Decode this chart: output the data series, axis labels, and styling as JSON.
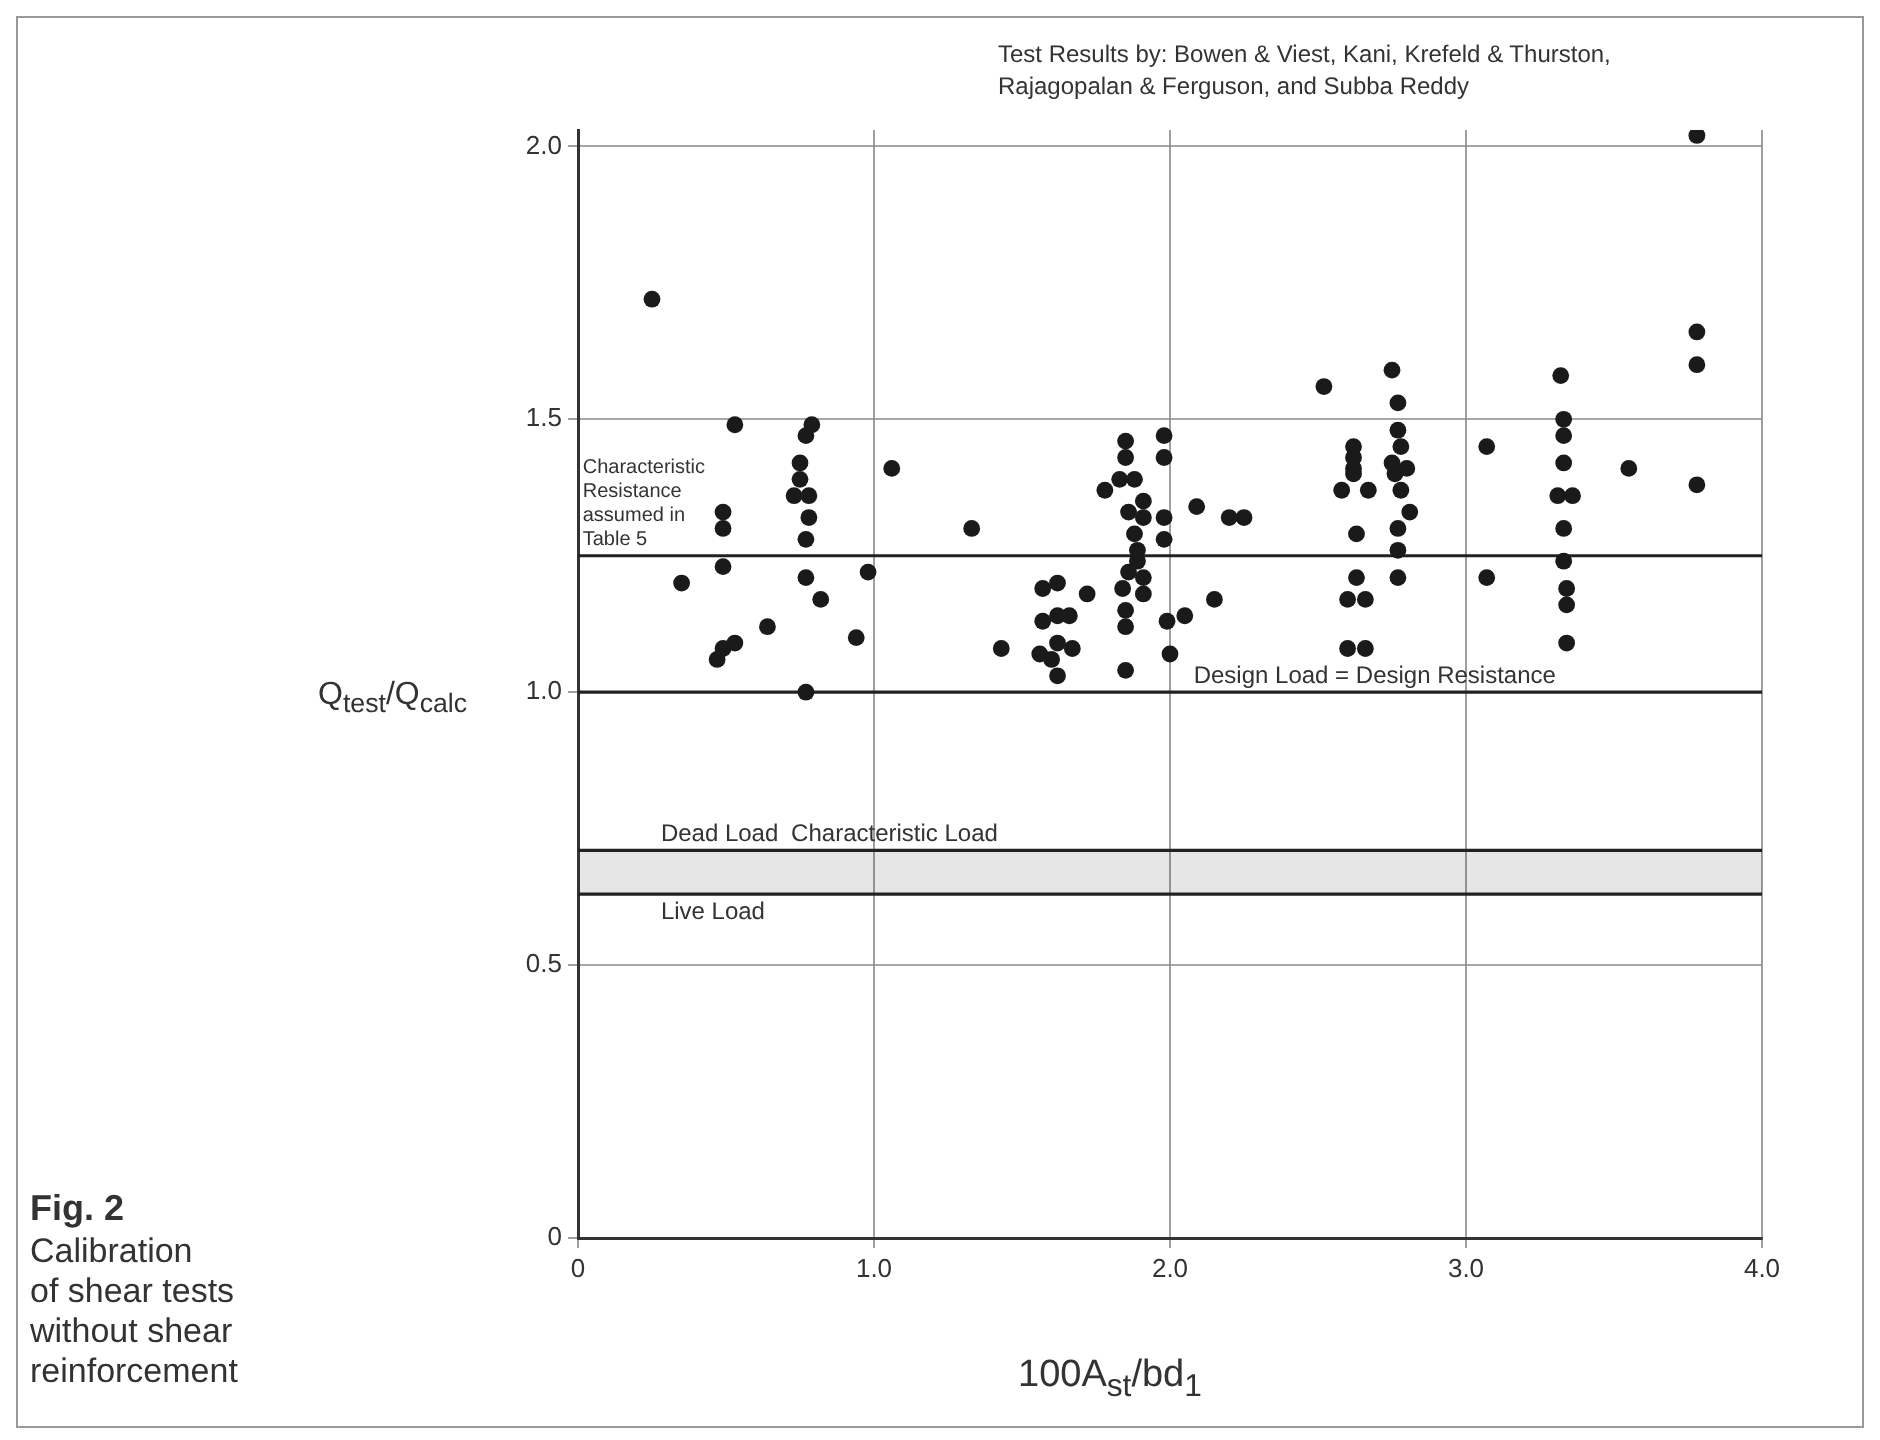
{
  "chart_data": {
    "type": "scatter",
    "xlabel": "100A$_{st}$/bd$_{1}$",
    "ylabel": "Q$_{test}$/Q$_{calc}$",
    "annotations": [
      "Test Results by: Bowen & Viest, Kani, Krefeld & Thurston,\nRajagopalan & Ferguson, and Subba Reddy",
      "Fig. 2",
      "Calibration\nof shear tests\nwithout shear\nreinforcement"
    ],
    "xlim": [
      0,
      4
    ],
    "ylim": [
      0,
      2.03
    ],
    "xticks": [
      0,
      {
        "value": 1,
        "label": "1.0"
      },
      {
        "value": 2,
        "label": "2.0"
      },
      {
        "value": 3,
        "label": "3.0"
      },
      {
        "value": 4,
        "label": "4.0"
      }
    ],
    "yticks": [
      0,
      {
        "value": 0.5,
        "label": "0.5"
      },
      {
        "value": 1,
        "label": "1.0"
      },
      {
        "value": 1.5,
        "label": "1.5"
      },
      {
        "value": 2,
        "label": "2.0"
      }
    ],
    "grid": true,
    "legend": false,
    "marker": "circle",
    "ref_lines": [
      {
        "axis": "y",
        "value": 1.25,
        "label": "Characteristic Resistance assumed in Table 5",
        "color": "#222222"
      },
      {
        "axis": "y",
        "value": 1.0,
        "label": "Design Load = Design Resistance",
        "color": "#222222"
      },
      {
        "axis": "y",
        "value": 0.71,
        "label": "Dead Load",
        "color": "#222222"
      },
      {
        "axis": "y",
        "value": 0.63,
        "label": "Live Load",
        "color": "#222222"
      }
    ],
    "bands": [
      {
        "axis": "y",
        "from": 0.63,
        "to": 0.71,
        "label": "Characteristic Load",
        "color": "#444444"
      }
    ],
    "series": [
      {
        "color": "#1a1a1a",
        "x": [
          0.25,
          0.53,
          0.79,
          0.77,
          0.75,
          0.75,
          0.73,
          0.78,
          0.78,
          0.77,
          0.77,
          0.82,
          0.94,
          0.77,
          1.06,
          1.33,
          0.98,
          0.49,
          0.49,
          0.49,
          0.35,
          0.64,
          0.53,
          0.49,
          0.47,
          1.43,
          1.57,
          1.62,
          1.72,
          1.57,
          1.62,
          1.66,
          1.62,
          1.56,
          1.6,
          1.67,
          1.62,
          1.78,
          1.85,
          1.85,
          1.83,
          1.88,
          1.91,
          1.86,
          1.91,
          1.88,
          1.89,
          1.89,
          1.86,
          1.91,
          1.84,
          1.91,
          1.85,
          1.85,
          1.85,
          1.98,
          1.98,
          1.98,
          1.98,
          1.99,
          2.05,
          2.0,
          2.09,
          2.15,
          2.2,
          2.25,
          2.52,
          2.62,
          2.62,
          2.62,
          2.62,
          2.58,
          2.67,
          2.63,
          2.63,
          2.6,
          2.66,
          2.6,
          2.66,
          2.75,
          2.77,
          2.77,
          2.78,
          2.75,
          2.8,
          2.76,
          2.78,
          2.81,
          2.77,
          2.77,
          2.77,
          3.07,
          3.07,
          3.32,
          3.33,
          3.33,
          3.33,
          3.31,
          3.36,
          3.33,
          3.33,
          3.34,
          3.34,
          3.34,
          3.55,
          3.78,
          3.78,
          3.78,
          3.78
        ],
        "values": [
          1.72,
          1.49,
          1.49,
          1.47,
          1.42,
          1.39,
          1.36,
          1.36,
          1.32,
          1.28,
          1.21,
          1.17,
          1.1,
          1.0,
          1.41,
          1.3,
          1.22,
          1.33,
          1.3,
          1.23,
          1.2,
          1.12,
          1.09,
          1.08,
          1.06,
          1.08,
          1.19,
          1.2,
          1.18,
          1.13,
          1.14,
          1.14,
          1.09,
          1.07,
          1.06,
          1.08,
          1.03,
          1.37,
          1.46,
          1.43,
          1.39,
          1.39,
          1.35,
          1.33,
          1.32,
          1.29,
          1.26,
          1.24,
          1.22,
          1.21,
          1.19,
          1.18,
          1.15,
          1.12,
          1.04,
          1.47,
          1.43,
          1.32,
          1.28,
          1.13,
          1.14,
          1.07,
          1.34,
          1.17,
          1.32,
          1.32,
          1.56,
          1.45,
          1.43,
          1.41,
          1.4,
          1.37,
          1.37,
          1.29,
          1.21,
          1.17,
          1.17,
          1.08,
          1.08,
          1.59,
          1.53,
          1.48,
          1.45,
          1.42,
          1.41,
          1.4,
          1.37,
          1.33,
          1.3,
          1.26,
          1.21,
          1.45,
          1.21,
          1.58,
          1.5,
          1.47,
          1.42,
          1.36,
          1.36,
          1.3,
          1.24,
          1.19,
          1.16,
          1.09,
          1.41,
          2.02,
          1.66,
          1.6,
          1.38
        ]
      }
    ]
  }
}
